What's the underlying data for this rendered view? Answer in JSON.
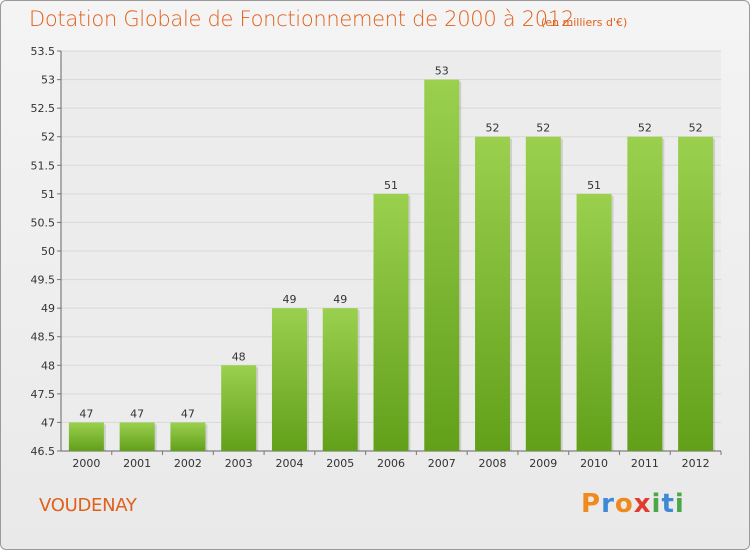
{
  "title": "Dotation Globale de Fonctionnement de 2000 à 2012",
  "subtitle": "(en milliers d'€)",
  "commune": "VOUDENAY",
  "logo_text": "Proxiti",
  "colors": {
    "bar_top": "#9ad04e",
    "bar_bottom": "#62a01a",
    "title": "#e0601c"
  },
  "chart_data": {
    "type": "bar",
    "categories": [
      "2000",
      "2001",
      "2002",
      "2003",
      "2004",
      "2005",
      "2006",
      "2007",
      "2008",
      "2009",
      "2010",
      "2011",
      "2012"
    ],
    "values": [
      47,
      47,
      47,
      48,
      49,
      49,
      51,
      53,
      52,
      52,
      51,
      52,
      52
    ],
    "value_labels": [
      "47",
      "47",
      "47",
      "48",
      "49",
      "49",
      "51",
      "53",
      "52",
      "52",
      "51",
      "52",
      "52"
    ],
    "ylim": [
      46.5,
      53.5
    ],
    "yticks": [
      46.5,
      47,
      47.5,
      48,
      48.5,
      49,
      49.5,
      50,
      50.5,
      51,
      51.5,
      52,
      52.5,
      53,
      53.5
    ],
    "grid": true,
    "legend": "none"
  }
}
